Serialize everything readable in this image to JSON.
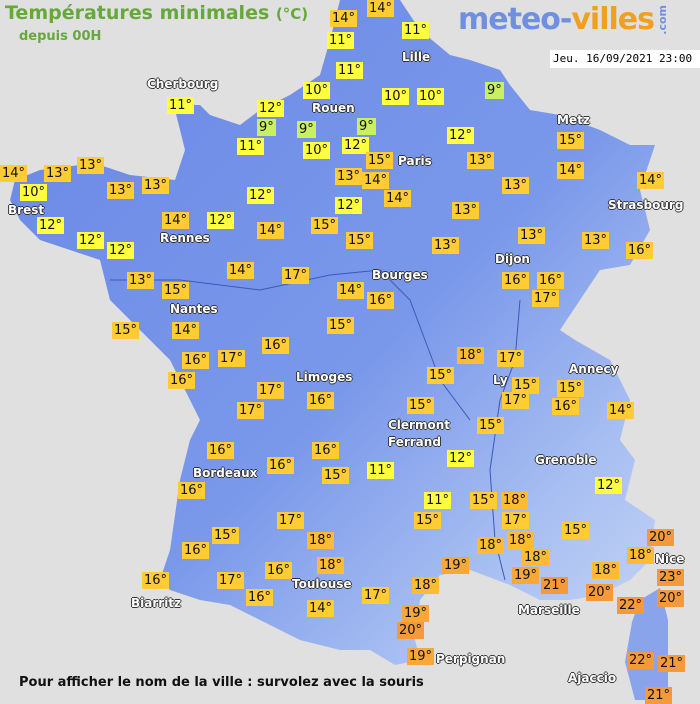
{
  "header": {
    "title": "Températures minimales",
    "unit": "(°C)",
    "subtitle": "depuis 00H",
    "logo": {
      "part1": "meteo-",
      "part2": "villes",
      "suffix": ".com"
    },
    "datetime": "Jeu. 16/09/2021 23:00"
  },
  "footer": {
    "hint": "Pour afficher le nom de la ville : survolez avec la souris"
  },
  "colors": {
    "background": "#e0e0e0",
    "land": "#7090e8",
    "title": "#66a83a",
    "temp_9": "#c8f060",
    "temp_10_12": "#ffff40",
    "temp_13_17": "#ffcc33",
    "temp_18": "#ffbb33",
    "temp_19": "#f8a838",
    "temp_20_plus": "#f59a3a"
  },
  "cities": [
    "Cherbourg",
    "Rouen",
    "Lille",
    "Paris",
    "Metz",
    "Strasbourg",
    "Brest",
    "Rennes",
    "Dijon",
    "Bourges",
    "Nantes",
    "Limoges",
    "Annecy",
    "Ly",
    "Clermont",
    "Ferrand",
    "Grenoble",
    "Bordeaux",
    "Toulouse",
    "Biarritz",
    "Marseille",
    "Nice",
    "Perpignan",
    "Ajaccio"
  ],
  "temperatures": [
    "14°",
    "14°",
    "11°",
    "11°",
    "11°",
    "10°",
    "12°",
    "9°",
    "9°",
    "11°",
    "10°",
    "10°",
    "10°",
    "9°",
    "9°",
    "12°",
    "12°",
    "15°",
    "13°",
    "14°",
    "14°",
    "13°",
    "12°",
    "13°",
    "13°",
    "15°",
    "15°",
    "13°",
    "13°",
    "11°",
    "13°",
    "14°",
    "13°",
    "10°",
    "13°",
    "13°",
    "12°",
    "12°",
    "12°",
    "14°",
    "12°",
    "12°",
    "14°",
    "14°",
    "17°",
    "13°",
    "15°",
    "15°",
    "14°",
    "16°",
    "14°",
    "16°",
    "15°",
    "15°",
    "14°",
    "14°",
    "13°",
    "16°",
    "16°",
    "16°",
    "17°",
    "18°",
    "17°",
    "15°",
    "15°",
    "17°",
    "15°",
    "16°",
    "14°",
    "15°",
    "15°",
    "12°",
    "11°",
    "12°",
    "11°",
    "15°",
    "15°",
    "18°",
    "17°",
    "15°",
    "18°",
    "18°",
    "18°",
    "19°",
    "21°",
    "19°",
    "18°",
    "17°",
    "19°",
    "20°",
    "19°",
    "18°",
    "20°",
    "18°",
    "20°",
    "23°",
    "20°",
    "22°",
    "22°",
    "21°",
    "21°",
    "16°",
    "17°",
    "16°",
    "17°",
    "17°",
    "16°",
    "16°",
    "16°",
    "16°",
    "15°",
    "16°",
    "17°",
    "18°",
    "15°",
    "16°",
    "16°",
    "18°",
    "16°",
    "17°",
    "16°",
    "14°"
  ]
}
